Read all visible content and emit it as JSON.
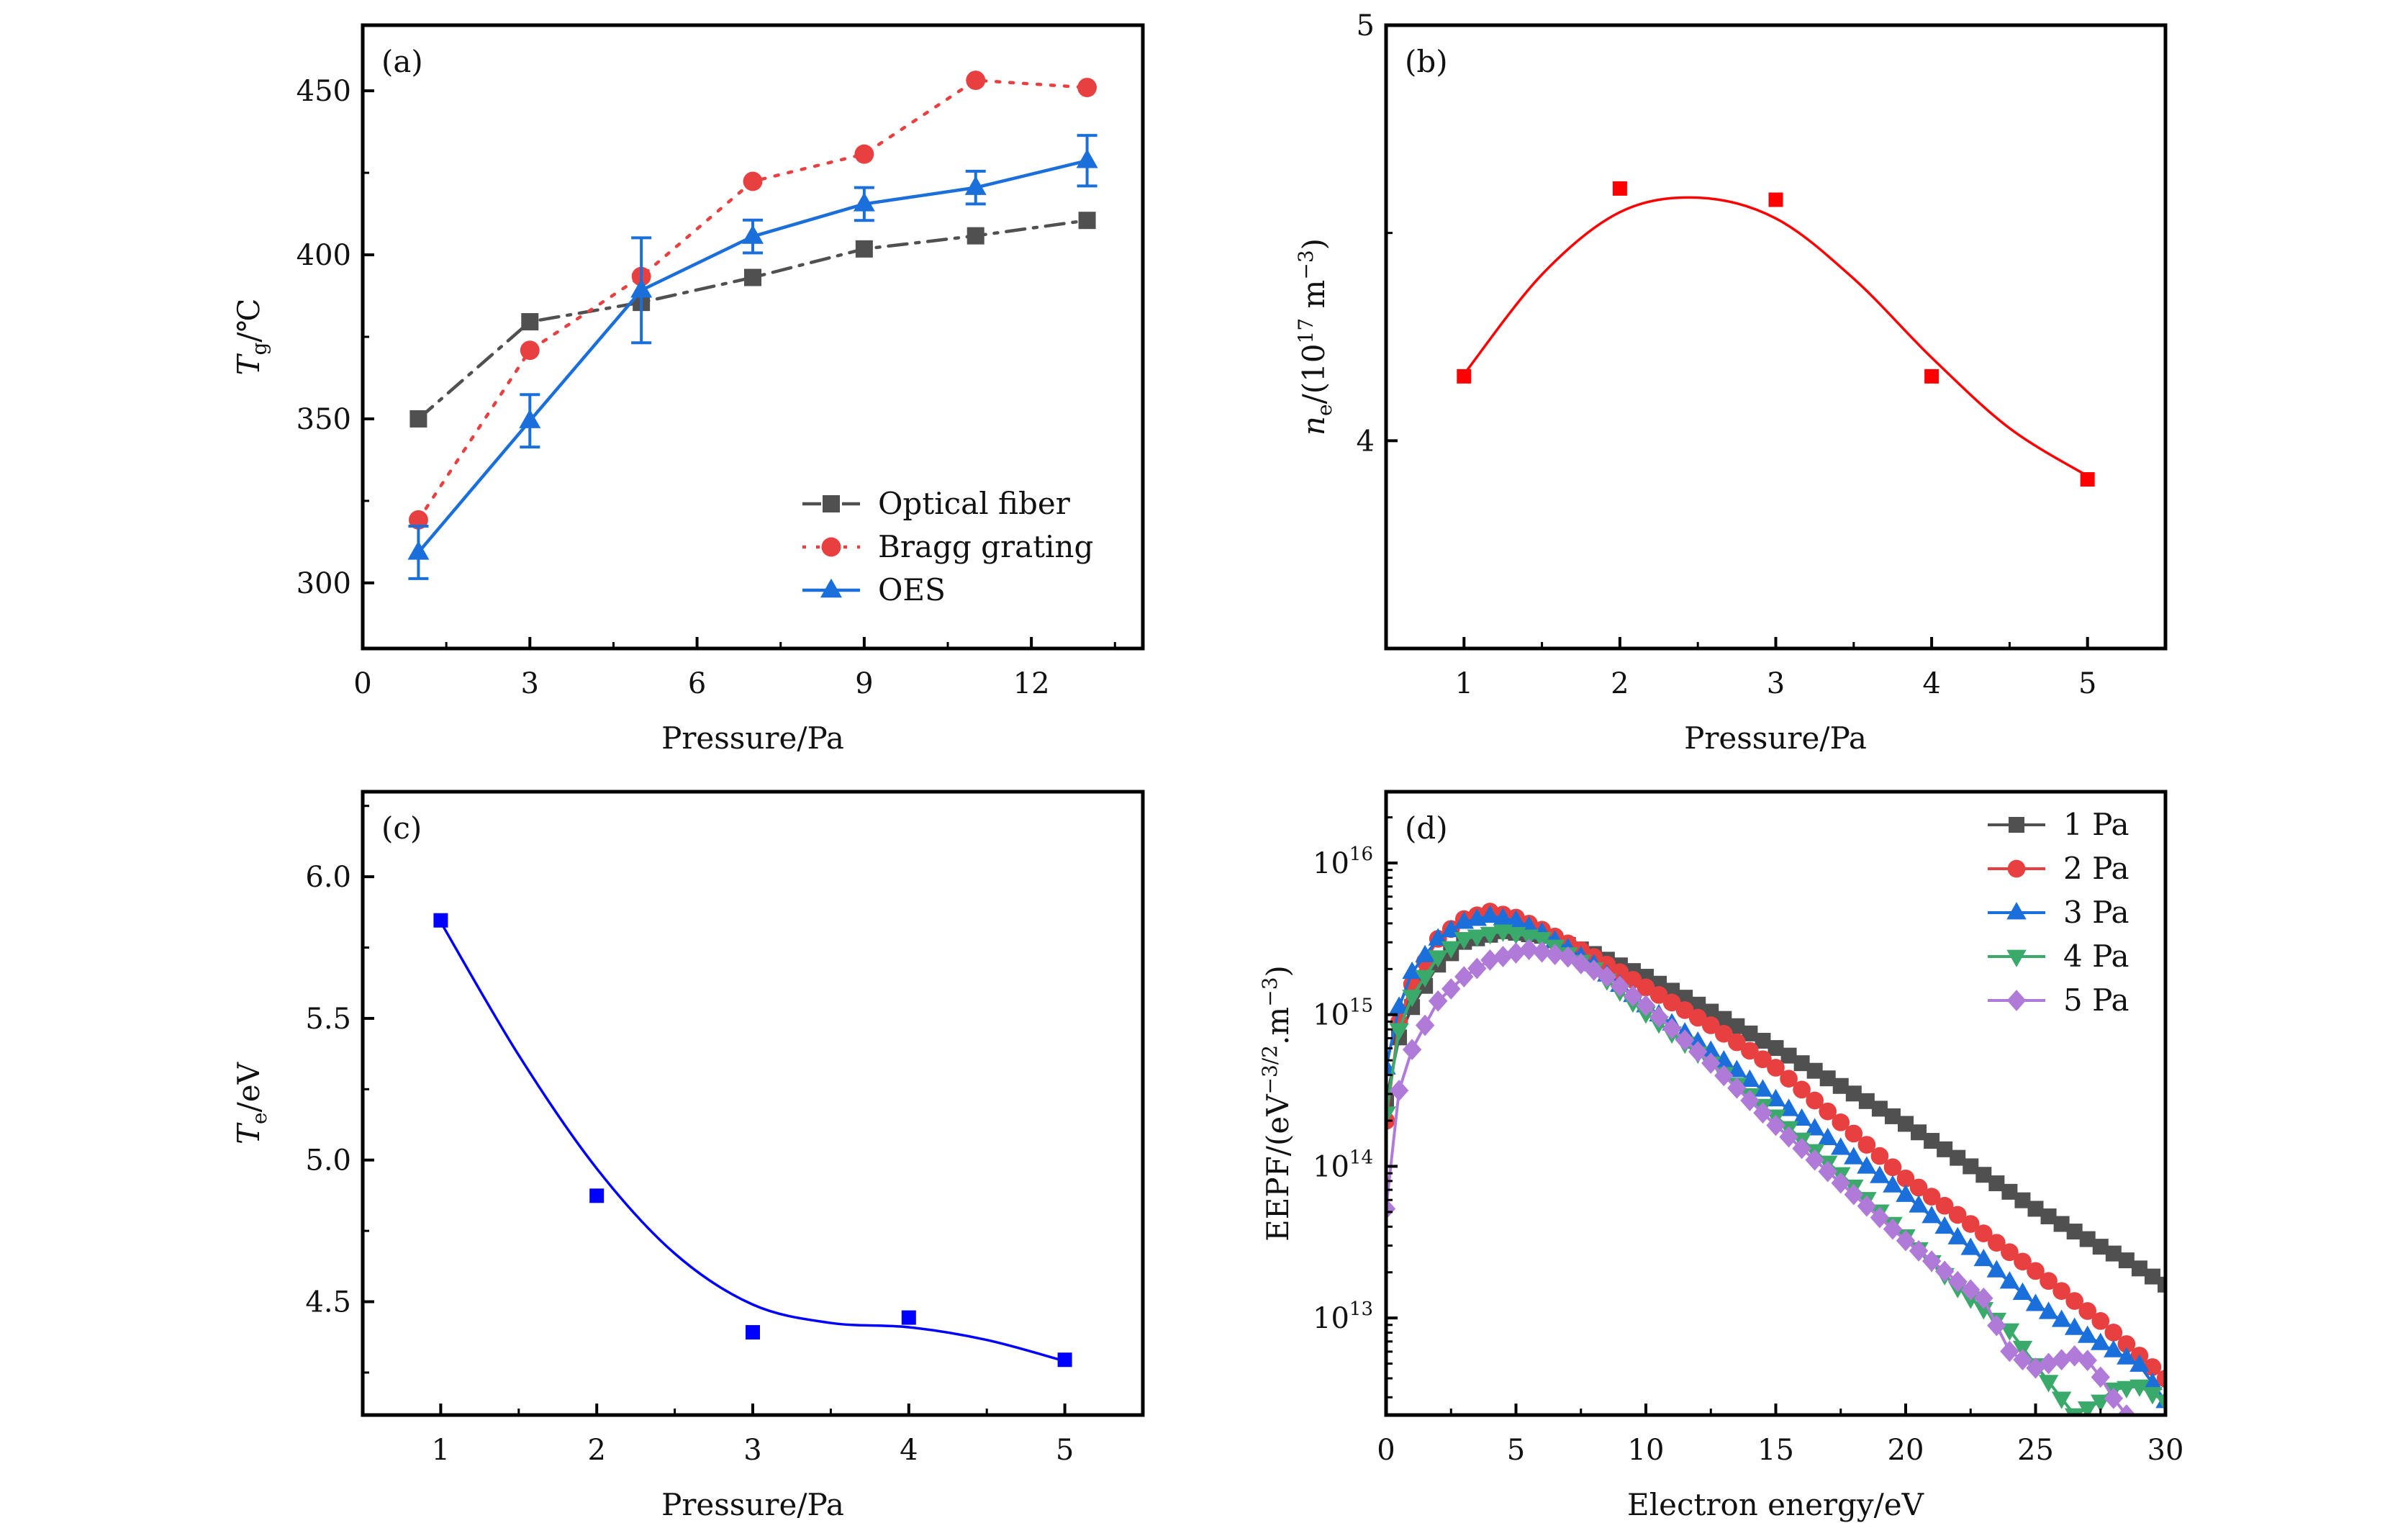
{
  "chart_data": [
    {
      "panel": "(a)",
      "type": "line",
      "title": "",
      "xlabel": "Pressure/Pa",
      "ylabel": {
        "main": "T",
        "sub": "g",
        "unit": "/℃"
      },
      "xlim": [
        0,
        14
      ],
      "ylim": [
        280,
        470
      ],
      "xticks": [
        0,
        3,
        6,
        9,
        12
      ],
      "xminor": [
        1.5,
        4.5,
        7.5,
        10.5,
        13.5
      ],
      "yticks": [
        300,
        350,
        400,
        450
      ],
      "yminor": [
        325,
        375,
        425
      ],
      "grid": false,
      "legend_position": "bottom-right",
      "x": [
        1,
        3,
        5,
        7,
        9,
        11,
        13
      ],
      "series": [
        {
          "name": "Optical fiber",
          "marker": "square",
          "line": "dashdot",
          "color": "#505050",
          "values": [
            350.0,
            379.6,
            385.5,
            393.1,
            401.8,
            405.8,
            410.5
          ]
        },
        {
          "name": "Bragg grating",
          "marker": "circle",
          "line": "dotted",
          "color": "#e84040",
          "values": [
            319.2,
            370.9,
            393.4,
            422.4,
            430.7,
            453.2,
            451.0
          ]
        },
        {
          "name": "OES",
          "marker": "triangle-up",
          "line": "solid",
          "color": "#1a6fdb",
          "values": [
            309.3,
            349.4,
            389.2,
            405.6,
            415.5,
            420.5,
            428.7
          ],
          "error": [
            8,
            8,
            16,
            5,
            5,
            5,
            7.7
          ]
        }
      ]
    },
    {
      "panel": "(b)",
      "type": "scatter",
      "title": "",
      "xlabel": "Pressure/Pa",
      "ylabel": {
        "main": "n",
        "sub": "e",
        "unit": "/(10",
        "exp": "17",
        "unit2": " m",
        "exp2": "−3",
        "close": ")"
      },
      "xlim": [
        0.5,
        5.5
      ],
      "ylim": [
        3.5,
        5.0
      ],
      "xticks": [
        1,
        2,
        3,
        4,
        5
      ],
      "xminor": [
        1.5,
        2.5,
        3.5,
        4.5
      ],
      "yticks": [
        4,
        5
      ],
      "yminor": [
        4.5
      ],
      "grid": false,
      "x": [
        1,
        2,
        3,
        4,
        5
      ],
      "series": [
        {
          "name": "n_e",
          "marker": "square",
          "color": "#ff0000",
          "values": [
            4.155,
            4.607,
            4.58,
            4.155,
            3.907
          ],
          "fit": "smooth"
        }
      ]
    },
    {
      "panel": "(c)",
      "type": "scatter",
      "title": "",
      "xlabel": "Pressure/Pa",
      "ylabel": {
        "main": "T",
        "sub": "e",
        "unit": "/eV"
      },
      "xlim": [
        0.5,
        5.5
      ],
      "ylim": [
        4.1,
        6.3
      ],
      "xticks": [
        1,
        2,
        3,
        4,
        5
      ],
      "xminor": [
        1.5,
        2.5,
        3.5,
        4.5
      ],
      "yticks": [
        4.5,
        5.0,
        5.5,
        6.0
      ],
      "ytick_labels": [
        "4.5",
        "5.0",
        "5.5",
        "6.0"
      ],
      "yminor": [
        4.25,
        4.75,
        5.25,
        5.75,
        6.25
      ],
      "grid": false,
      "x": [
        1,
        2,
        3,
        4,
        5
      ],
      "series": [
        {
          "name": "T_e",
          "marker": "square",
          "color": "#0000ff",
          "values": [
            5.846,
            4.874,
            4.392,
            4.444,
            4.295
          ],
          "fit": "smooth"
        }
      ]
    },
    {
      "panel": "(d)",
      "type": "line",
      "yscale": "log",
      "title": "",
      "xlabel": "Electron energy/eV",
      "ylabel": {
        "main": "EEPF/(eV",
        "exp": "−3/2",
        "unit": ".m",
        "exp2": "−3",
        "close": ")"
      },
      "xlim": [
        0,
        30
      ],
      "ylim_log10": [
        12.36,
        16.47
      ],
      "xticks": [
        0,
        5,
        10,
        15,
        20,
        25,
        30
      ],
      "xminor": [
        2.5,
        7.5,
        12.5,
        17.5,
        22.5,
        27.5
      ],
      "yticks_log10": [
        13,
        14,
        15,
        16
      ],
      "ytick_labels": [
        {
          "base": "10",
          "exp": "13"
        },
        {
          "base": "10",
          "exp": "14"
        },
        {
          "base": "10",
          "exp": "15"
        },
        {
          "base": "10",
          "exp": "16"
        }
      ],
      "grid": false,
      "legend_position": "top-right",
      "marker_step": 0.5,
      "series": [
        {
          "name": "1 Pa",
          "marker": "square",
          "color": "#505050",
          "points_log10": [
            [
              0,
              14.43
            ],
            [
              0.5,
              14.85
            ],
            [
              1,
              15.05
            ],
            [
              2,
              15.33
            ],
            [
              3,
              15.48
            ],
            [
              4.5,
              15.55
            ],
            [
              6,
              15.52
            ],
            [
              8,
              15.4
            ],
            [
              10,
              15.25
            ],
            [
              12.5,
              15.02
            ],
            [
              15,
              14.78
            ],
            [
              17.5,
              14.53
            ],
            [
              20,
              14.28
            ],
            [
              22.5,
              14.0
            ],
            [
              25,
              13.72
            ],
            [
              27.5,
              13.47
            ],
            [
              28.5,
              13.38
            ],
            [
              30,
              13.22
            ]
          ]
        },
        {
          "name": "2 Pa",
          "marker": "circle",
          "color": "#e84040",
          "points_log10": [
            [
              0,
              14.3
            ],
            [
              0.5,
              14.95
            ],
            [
              1,
              15.2
            ],
            [
              2,
              15.5
            ],
            [
              3,
              15.63
            ],
            [
              4,
              15.68
            ],
            [
              5,
              15.64
            ],
            [
              6,
              15.56
            ],
            [
              8,
              15.38
            ],
            [
              10,
              15.18
            ],
            [
              12.5,
              14.93
            ],
            [
              15,
              14.65
            ],
            [
              17.5,
              14.29
            ],
            [
              20,
              13.92
            ],
            [
              22.5,
              13.62
            ],
            [
              25,
              13.31
            ],
            [
              27.5,
              12.98
            ],
            [
              30,
              12.6
            ]
          ]
        },
        {
          "name": "3 Pa",
          "marker": "triangle-up",
          "color": "#1a6fdb",
          "points_log10": [
            [
              0,
              14.65
            ],
            [
              0.5,
              15.05
            ],
            [
              1,
              15.28
            ],
            [
              2,
              15.5
            ],
            [
              3,
              15.61
            ],
            [
              4,
              15.65
            ],
            [
              5,
              15.62
            ],
            [
              6,
              15.54
            ],
            [
              8,
              15.33
            ],
            [
              10,
              15.06
            ],
            [
              12.5,
              14.76
            ],
            [
              15,
              14.44
            ],
            [
              17.5,
              14.12
            ],
            [
              20,
              13.81
            ],
            [
              22.5,
              13.46
            ],
            [
              25,
              13.09
            ],
            [
              27,
              12.88
            ],
            [
              29,
              12.69
            ],
            [
              30,
              12.45
            ]
          ]
        },
        {
          "name": "4 Pa",
          "marker": "triangle-down",
          "color": "#3aaa6a",
          "points_log10": [
            [
              0,
              14.35
            ],
            [
              0.5,
              14.9
            ],
            [
              1,
              15.12
            ],
            [
              2,
              15.38
            ],
            [
              3,
              15.5
            ],
            [
              4.5,
              15.55
            ],
            [
              6,
              15.5
            ],
            [
              8,
              15.3
            ],
            [
              10,
              15.01
            ],
            [
              12.5,
              14.68
            ],
            [
              15,
              14.33
            ],
            [
              17.5,
              13.95
            ],
            [
              20,
              13.54
            ],
            [
              22,
              13.2
            ],
            [
              24,
              12.92
            ],
            [
              25,
              12.69
            ],
            [
              26,
              12.47
            ],
            [
              26.5,
              12.36
            ],
            [
              27.5,
              12.45
            ],
            [
              28,
              12.53
            ],
            [
              29,
              12.55
            ],
            [
              30,
              12.45
            ]
          ]
        },
        {
          "name": "5 Pa",
          "marker": "diamond",
          "color": "#b07ad8",
          "points_log10": [
            [
              0,
              13.72
            ],
            [
              0.5,
              14.5
            ],
            [
              1,
              14.77
            ],
            [
              2,
              15.09
            ],
            [
              3,
              15.25
            ],
            [
              4,
              15.36
            ],
            [
              5.5,
              15.43
            ],
            [
              7,
              15.38
            ],
            [
              8.5,
              15.25
            ],
            [
              10,
              15.06
            ],
            [
              12.5,
              14.68
            ],
            [
              15,
              14.27
            ],
            [
              17.5,
              13.89
            ],
            [
              20,
              13.51
            ],
            [
              22,
              13.24
            ],
            [
              23,
              13.13
            ],
            [
              23.5,
              12.95
            ],
            [
              24,
              12.78
            ],
            [
              25,
              12.67
            ],
            [
              25.5,
              12.7
            ],
            [
              26.5,
              12.75
            ],
            [
              27,
              12.72
            ],
            [
              27.5,
              12.61
            ],
            [
              28,
              12.47
            ],
            [
              28.5,
              12.36
            ]
          ]
        }
      ]
    }
  ]
}
